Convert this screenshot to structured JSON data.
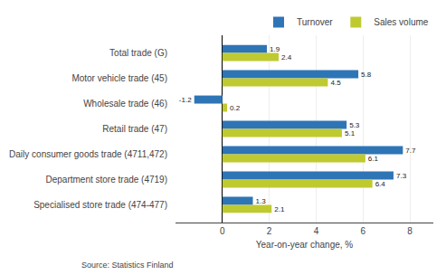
{
  "chart_data": {
    "type": "bar",
    "orientation": "horizontal",
    "categories": [
      "Specialised store trade (474-477)",
      "Department store trade (4719)",
      "Daily consumer goods trade (4711,472)",
      "Retail trade (47)",
      "Wholesale trade (46)",
      "Motor vehicle trade (45)",
      "Total trade (G)"
    ],
    "series": [
      {
        "name": "Turnover",
        "color": "#2E75B6",
        "values": [
          1.3,
          7.3,
          7.7,
          5.3,
          -1.2,
          5.8,
          1.9
        ]
      },
      {
        "name": "Sales volume",
        "color": "#BFCA30",
        "values": [
          2.1,
          6.4,
          6.1,
          5.1,
          0.2,
          4.5,
          2.4
        ]
      }
    ],
    "xlabel": "Year-on-year change, %",
    "xlim": [
      -2.0,
      9.0
    ],
    "xticks": [
      0,
      2,
      4,
      6,
      8
    ],
    "grid": true,
    "legend": "upper right",
    "data_labels": true,
    "source": "Source: Statistics Finland"
  }
}
